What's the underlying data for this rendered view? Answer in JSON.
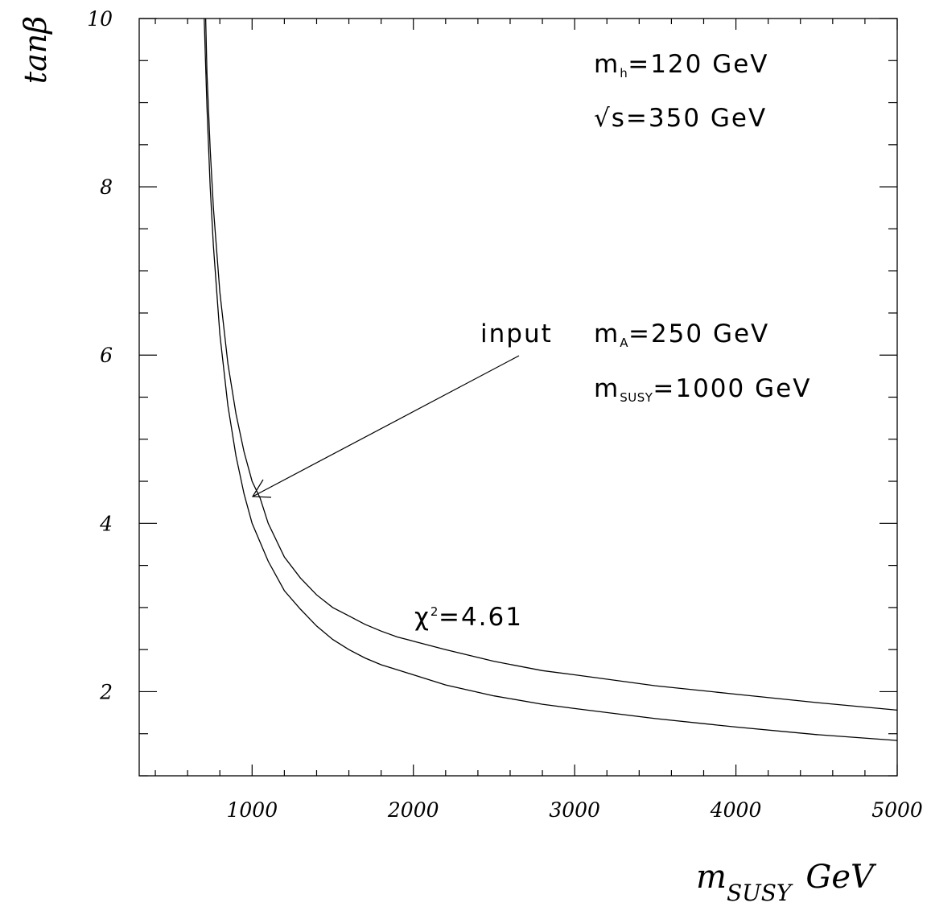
{
  "chart_data": {
    "type": "line",
    "title": "",
    "xlabel": "m",
    "xlabel_sub": "SUSY",
    "xlabel_unit": "GeV",
    "ylabel": "tanβ",
    "xlim": [
      300,
      5000
    ],
    "ylim": [
      1,
      10
    ],
    "x_ticks": [
      1000,
      2000,
      3000,
      4000,
      5000
    ],
    "x_tick_labels": [
      "1000",
      "2000",
      "3000",
      "4000",
      "5000"
    ],
    "y_ticks": [
      2,
      4,
      6,
      8,
      10
    ],
    "y_tick_labels": [
      "2",
      "4",
      "6",
      "8",
      "10"
    ],
    "x_minor_step": 200,
    "y_minor_step": 0.5,
    "grid": false,
    "series": [
      {
        "x": [
          703,
          710,
          720,
          740,
          760,
          800,
          850,
          900,
          950,
          1000,
          1100,
          1200,
          1300,
          1400,
          1500,
          1600,
          1700,
          1800,
          1900,
          2000,
          2200,
          2500,
          2800,
          3000,
          3500,
          4000,
          4500,
          5000
        ],
        "y": [
          10.0,
          9.55,
          8.95,
          8.0,
          7.3,
          6.25,
          5.4,
          4.8,
          4.35,
          4.0,
          3.55,
          3.2,
          2.98,
          2.78,
          2.62,
          2.5,
          2.4,
          2.32,
          2.26,
          2.2,
          2.08,
          1.95,
          1.85,
          1.8,
          1.68,
          1.58,
          1.49,
          1.42
        ]
      },
      {
        "x": [
          712,
          720,
          740,
          760,
          800,
          850,
          900,
          950,
          1000,
          1050,
          1100,
          1200,
          1300,
          1400,
          1500,
          1600,
          1700,
          1800,
          1900,
          2000,
          2200,
          2500,
          2800,
          3000,
          3500,
          4000,
          4500,
          5000
        ],
        "y": [
          10.0,
          9.35,
          8.45,
          7.75,
          6.75,
          5.9,
          5.3,
          4.85,
          4.5,
          4.3,
          4.0,
          3.6,
          3.35,
          3.15,
          3.0,
          2.9,
          2.8,
          2.72,
          2.65,
          2.6,
          2.5,
          2.36,
          2.25,
          2.2,
          2.07,
          1.97,
          1.87,
          1.78
        ]
      }
    ],
    "input_point": {
      "x": 1000,
      "y": 4.3
    },
    "annotations": {
      "mh": {
        "m": "m",
        "sub": "h",
        "rest": "=120  GeV"
      },
      "sqrt_s": {
        "text": "√s=350 GeV"
      },
      "input_label": "input",
      "mA": {
        "m": "m",
        "sub": "A",
        "rest": "=250  GeV"
      },
      "msusy": {
        "m": "m",
        "sub": "SUSY",
        "rest": "=1000  GeV"
      },
      "chi2": {
        "chi": "χ",
        "sup": "2",
        "rest": "=4.61"
      }
    }
  }
}
